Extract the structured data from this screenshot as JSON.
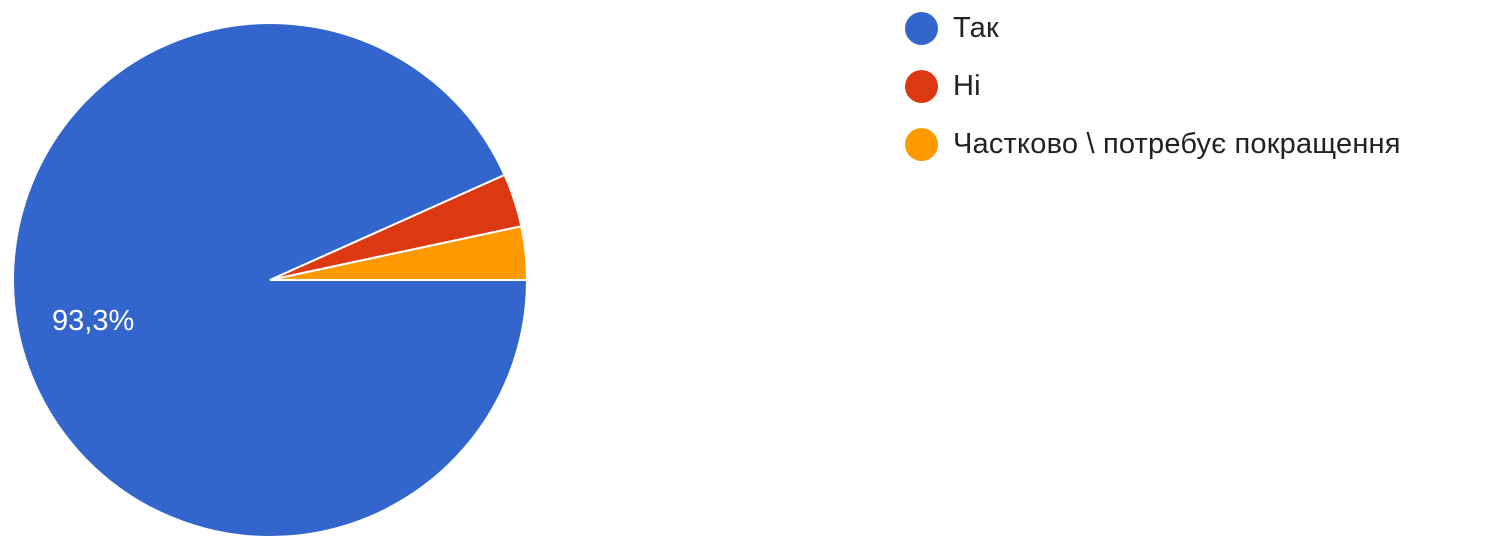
{
  "chart_data": {
    "type": "pie",
    "title": "",
    "legend_position": "right",
    "slices": [
      {
        "label": "Так",
        "value": 93.3,
        "display": "93,3%",
        "color": "#3366cc",
        "icon": "blue-dot-icon"
      },
      {
        "label": "Ні",
        "value": 3.35,
        "display": "",
        "color": "#dc3912",
        "icon": "red-dot-icon"
      },
      {
        "label": "Частково \\ потребує покращення",
        "value": 3.35,
        "display": "",
        "color": "#ff9900",
        "icon": "orange-dot-icon"
      }
    ]
  }
}
